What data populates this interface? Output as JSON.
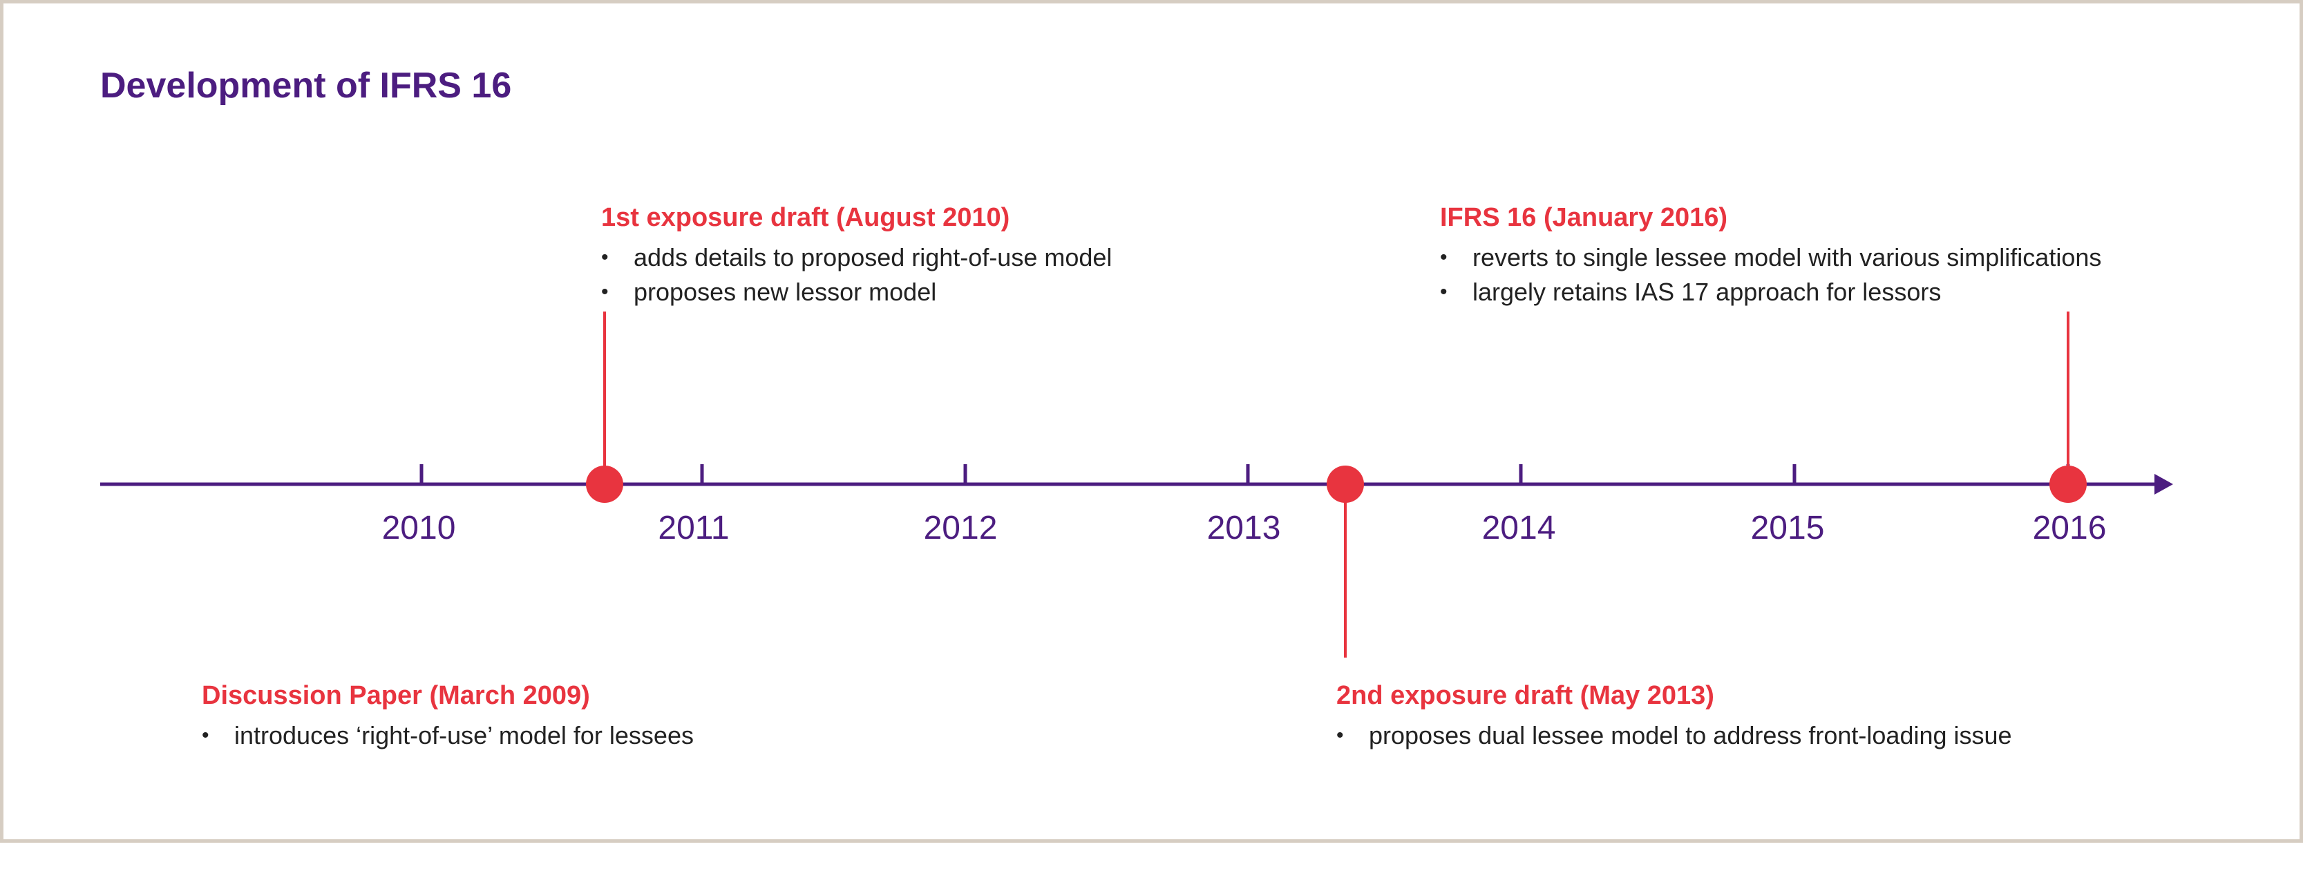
{
  "title": "Development of IFRS 16",
  "colors": {
    "brand_purple": "#4c1d80",
    "accent_red": "#e8343f",
    "frame_border": "#d6cdc2",
    "text": "#222222"
  },
  "timeline": {
    "years": [
      "2010",
      "2011",
      "2012",
      "2013",
      "2014",
      "2015",
      "2016"
    ],
    "events": [
      {
        "id": "discussion-paper",
        "title": "Discussion Paper (March 2009)",
        "bullets": [
          "introduces ‘right-of-use’ model for lessees"
        ]
      },
      {
        "id": "first-exposure-draft",
        "title": "1st exposure draft (August 2010)",
        "bullets": [
          "adds details to proposed right-of-use model",
          "proposes new lessor model"
        ]
      },
      {
        "id": "second-exposure-draft",
        "title": "2nd exposure draft (May 2013)",
        "bullets": [
          "proposes dual lessee model to address front-loading issue"
        ]
      },
      {
        "id": "ifrs16",
        "title": "IFRS 16 (January 2016)",
        "bullets": [
          "reverts to single lessee model with various simplifications",
          "largely retains IAS 17 approach for lessors"
        ]
      }
    ]
  }
}
